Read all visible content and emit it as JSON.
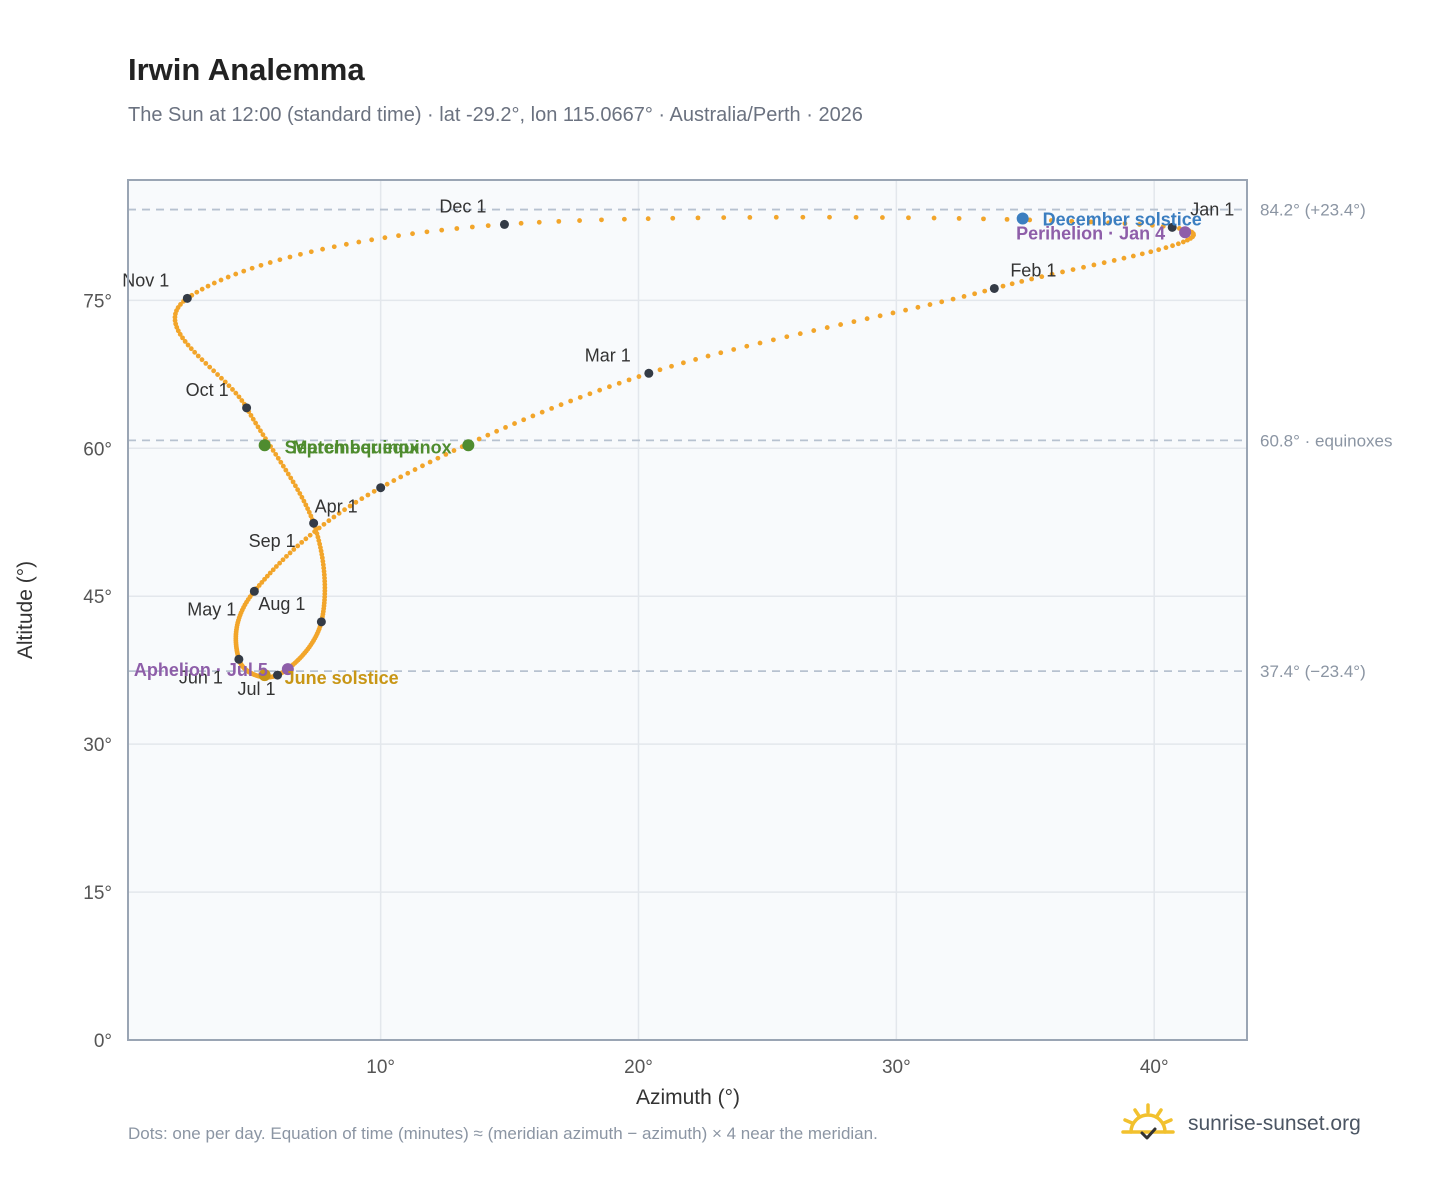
{
  "chart_data": {
    "type": "scatter",
    "title": "Irwin Analemma",
    "subtitle": "The Sun at 12:00 (standard time) · lat -29.2°, lon 115.0667° · Australia/Perth · 2026",
    "xlabel": "Azimuth (°)",
    "ylabel": "Altitude (°)",
    "xlim": [
      0.2,
      43.6
    ],
    "ylim": [
      0,
      87.2
    ],
    "xticks": [
      10,
      20,
      30,
      40
    ],
    "xtick_labels": [
      "10°",
      "20°",
      "30°",
      "40°"
    ],
    "yticks": [
      0,
      15,
      30,
      45,
      60,
      75
    ],
    "ytick_labels": [
      "0°",
      "15°",
      "30°",
      "45°",
      "60°",
      "75°"
    ],
    "grid": true,
    "reference_lines": [
      {
        "y": 84.2,
        "label": "84.2° (+23.4°)"
      },
      {
        "y": 60.8,
        "label": "60.8° · equinoxes"
      },
      {
        "y": 37.4,
        "label": "37.4° (−23.4°)"
      }
    ],
    "monthly": [
      {
        "label": "Jan 1",
        "x": 40.7,
        "y": 82.4
      },
      {
        "label": "Feb 1",
        "x": 33.8,
        "y": 76.2
      },
      {
        "label": "Mar 1",
        "x": 20.4,
        "y": 67.6
      },
      {
        "label": "Apr 1",
        "x": 10.0,
        "y": 56.0
      },
      {
        "label": "May 1",
        "x": 5.1,
        "y": 45.5
      },
      {
        "label": "Jun 1",
        "x": 4.5,
        "y": 38.6
      },
      {
        "label": "Jul 1",
        "x": 6.0,
        "y": 37.0
      },
      {
        "label": "Aug 1",
        "x": 7.7,
        "y": 42.4
      },
      {
        "label": "Sep 1",
        "x": 7.4,
        "y": 52.4
      },
      {
        "label": "Oct 1",
        "x": 4.8,
        "y": 64.1
      },
      {
        "label": "Nov 1",
        "x": 2.5,
        "y": 75.2
      },
      {
        "label": "Dec 1",
        "x": 14.8,
        "y": 82.7
      }
    ],
    "events": [
      {
        "label": "December solstice",
        "x": 34.9,
        "y": 83.3,
        "color": "#3b7ec0"
      },
      {
        "label": "Perihelion · Jan 4",
        "x": 41.2,
        "y": 81.9,
        "color": "#8e5ea9"
      },
      {
        "label": "March equinox",
        "x": 13.4,
        "y": 60.3,
        "color": "#4f8c2f"
      },
      {
        "label": "September equinox",
        "x": 5.5,
        "y": 60.3,
        "color": "#4f8c2f"
      },
      {
        "label": "June solstice",
        "x": 5.5,
        "y": 37.0,
        "color": "#c89616"
      },
      {
        "label": "Aphelion · Jul 5",
        "x": 6.4,
        "y": 37.6,
        "color": "#8e5ea9"
      }
    ],
    "series_color": "#f2a52a",
    "footnote": "Dots: one per day. Equation of time (minutes) ≈ (meridian azimuth − azimuth) × 4 near the meridian."
  },
  "brand": {
    "name": "sunrise-sunset.org",
    "icon": "sun-icon"
  }
}
